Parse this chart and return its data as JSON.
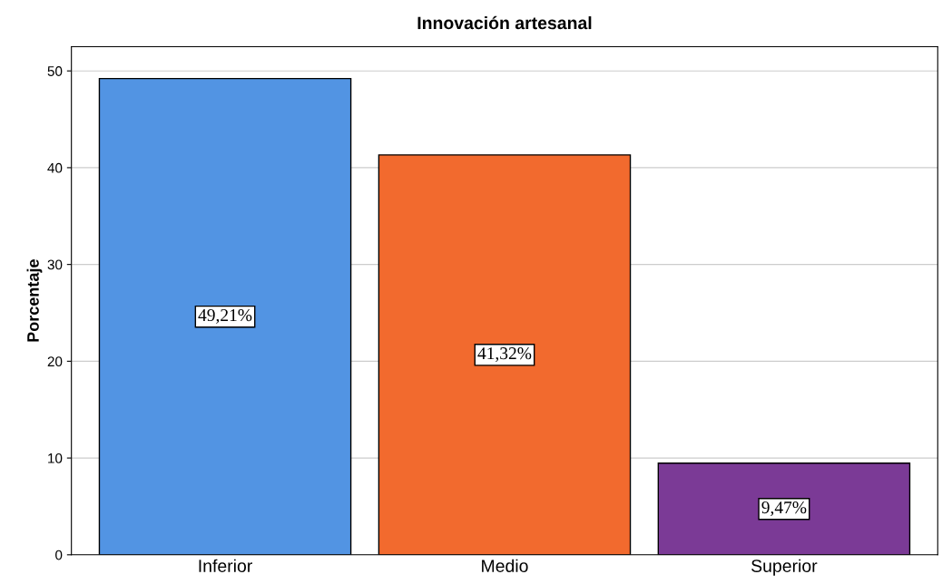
{
  "chart_data": {
    "type": "bar",
    "title": "Innovación artesanal",
    "ylabel": "Porcentaje",
    "categories": [
      "Inferior",
      "Medio",
      "Superior"
    ],
    "values": [
      49.21,
      41.32,
      9.47
    ],
    "colors": [
      "#5294e3",
      "#f26a2e",
      "#7b3a96"
    ],
    "value_labels": [
      "49,21%",
      "41,32%",
      "9,47%"
    ],
    "ylim": [
      0,
      52.5
    ],
    "yticks": [
      0,
      10,
      20,
      30,
      40,
      50
    ],
    "grid": "y"
  }
}
